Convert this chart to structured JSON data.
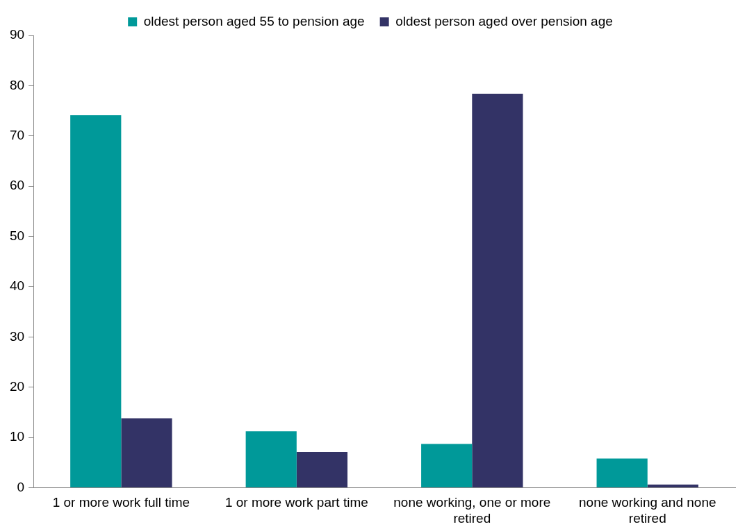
{
  "chart_data": {
    "type": "bar",
    "categories": [
      "1 or more work full time",
      "1 or more work part time",
      "none working, one or more retired",
      "none working and none retired"
    ],
    "series": [
      {
        "name": "oldest person aged 55 to pension age",
        "color": "#009999",
        "values": [
          74.1,
          11.2,
          8.7,
          5.8
        ]
      },
      {
        "name": "oldest person aged over pension age",
        "color": "#333366",
        "values": [
          13.8,
          7.1,
          78.4,
          0.6
        ]
      }
    ],
    "ylim": [
      0,
      90
    ],
    "yticks": [
      0,
      10,
      20,
      30,
      40,
      50,
      60,
      70,
      80,
      90
    ],
    "grid": false,
    "legend": "top"
  }
}
